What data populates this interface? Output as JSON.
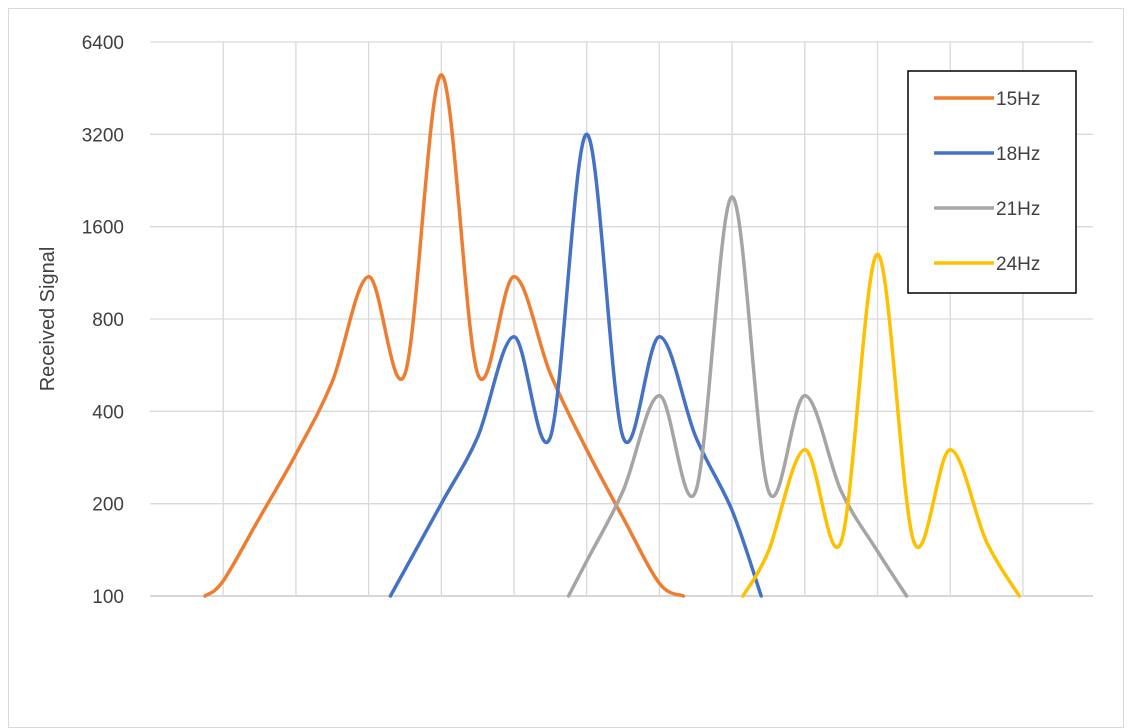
{
  "chart_data": {
    "type": "line",
    "title": "",
    "xlabel": "",
    "ylabel": "Received Signal",
    "y_scale": "log2",
    "ylim": [
      100,
      6400
    ],
    "y_ticks": [
      "100",
      "200",
      "400",
      "800",
      "1600",
      "3200",
      "6400"
    ],
    "x_range": [
      0,
      12
    ],
    "grid": true,
    "legend_position": "top-right",
    "series": [
      {
        "name": "15Hz",
        "color": "#ED7D31",
        "x": [
          0.75,
          1,
          1.5,
          2,
          2.5,
          3,
          3.5,
          4,
          4.5,
          5,
          5.5,
          6,
          6.5,
          7,
          7.33
        ],
        "y": [
          100,
          112,
          180,
          290,
          500,
          1100,
          530,
          5000,
          530,
          1100,
          530,
          300,
          180,
          110,
          100
        ]
      },
      {
        "name": "18Hz",
        "color": "#4472C4",
        "x": [
          3.3,
          4,
          4.5,
          5,
          5.5,
          6,
          6.5,
          7,
          7.5,
          8,
          8.4
        ],
        "y": [
          100,
          200,
          330,
          700,
          330,
          3200,
          330,
          700,
          330,
          190,
          100
        ]
      },
      {
        "name": "21Hz",
        "color": "#A5A5A5",
        "x": [
          5.75,
          6,
          6.5,
          7,
          7.5,
          8,
          8.5,
          9,
          9.5,
          10,
          10.4
        ],
        "y": [
          100,
          130,
          220,
          450,
          220,
          2000,
          220,
          450,
          220,
          140,
          100
        ]
      },
      {
        "name": "24Hz",
        "color": "#FFC000",
        "x": [
          8.15,
          8.5,
          9,
          9.5,
          10,
          10.5,
          11,
          11.5,
          11.95
        ],
        "y": [
          100,
          140,
          300,
          150,
          1300,
          150,
          300,
          150,
          100
        ]
      }
    ]
  }
}
